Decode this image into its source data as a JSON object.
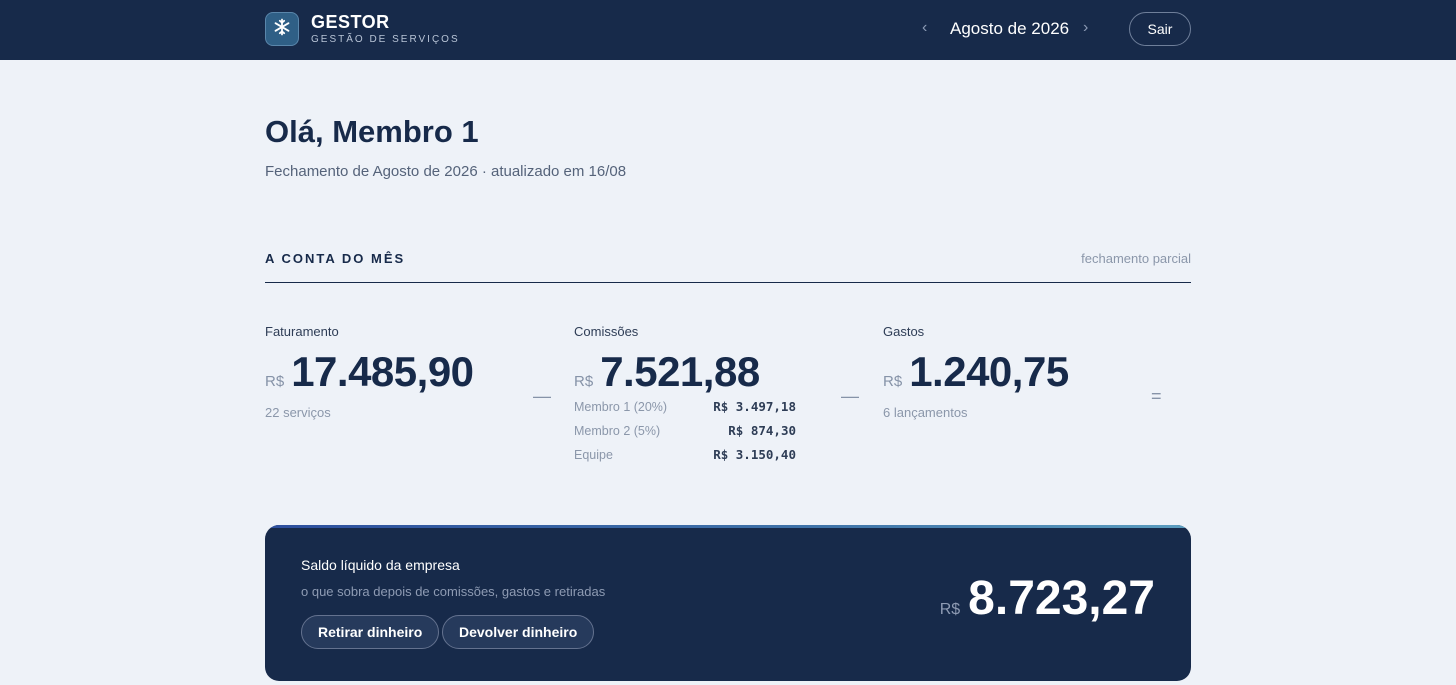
{
  "header": {
    "brand_name": "GESTOR",
    "brand_sub": "GESTÃO DE SERVIÇOS",
    "logo_icon": "snowflake-icon",
    "month_prev": "‹",
    "month_label": "Agosto de 2026",
    "month_next": "›",
    "logout_label": "Sair"
  },
  "greeting": {
    "title": "Olá, Membro 1",
    "subtitle": "Fechamento de Agosto de 2026 · atualizado em 16/08"
  },
  "section": {
    "title": "A CONTA DO MÊS",
    "note": "fechamento parcial"
  },
  "metrics": {
    "faturamento": {
      "label": "Faturamento",
      "currency": "R$",
      "value": "17.485,90",
      "note": "22 serviços"
    },
    "comissoes": {
      "label": "Comissões",
      "currency": "R$",
      "value": "7.521,88",
      "breakdown": [
        {
          "name": "Membro 1 (20%)",
          "value": "R$ 3.497,18"
        },
        {
          "name": "Membro 2 (5%)",
          "value": "R$ 874,30"
        },
        {
          "name": "Equipe",
          "value": "R$ 3.150,40"
        }
      ]
    },
    "gastos": {
      "label": "Gastos",
      "currency": "R$",
      "value": "1.240,75",
      "note": "6 lançamentos"
    },
    "operators": [
      "—",
      "—",
      "="
    ]
  },
  "balance": {
    "title": "Saldo líquido da empresa",
    "description": "o que sobra depois de comissões, gastos e retiradas",
    "withdraw_label": "Retirar dinheiro",
    "return_label": "Devolver dinheiro",
    "currency": "R$",
    "value": "8.723,27"
  },
  "colors": {
    "navy": "#172a4a",
    "background": "#eef2f8",
    "muted": "#8b97aa"
  }
}
